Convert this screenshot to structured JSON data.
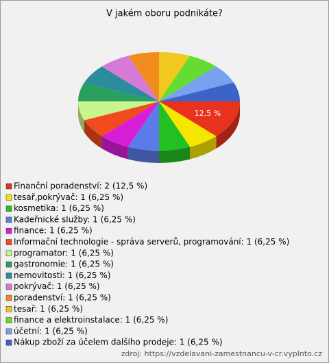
{
  "chart_data": {
    "type": "pie",
    "title": "V jakém oboru podnikáte?",
    "categories": [
      "Finanční poradenství: 2 (12,5 %)",
      "tesař,pokrývač: 1 (6,25 %)",
      "kosmetika: 1 (6,25 %)",
      "Kadeřnické služby: 1 (6,25 %)",
      "finance: 1 (6,25 %)",
      "Informační technologie - správa serverů, programování: 1 (6,25 %)",
      "programator: 1 (6,25 %)",
      "gastronomie: 1 (6,25 %)",
      "nemovitosti: 1 (6,25 %)",
      "pokrývač: 1 (6,25 %)",
      "poradenství: 1 (6,25 %)",
      "tesař: 1 (6,25 %)",
      "finance a elektroinstalace: 1 (6,25 %)",
      "účetní: 1 (6,25 %)",
      "Nákup zboží za účelem dalšího prodeje: 1 (6,25 %)"
    ],
    "values": [
      12.5,
      6.25,
      6.25,
      6.25,
      6.25,
      6.25,
      6.25,
      6.25,
      6.25,
      6.25,
      6.25,
      6.25,
      6.25,
      6.25,
      6.25
    ],
    "value_labels": [
      "12,5 %",
      null,
      null,
      null,
      null,
      null,
      null,
      null,
      null,
      null,
      null,
      null,
      null,
      null,
      null
    ],
    "colors": [
      "#e8321e",
      "#f5e600",
      "#22c022",
      "#5b7be8",
      "#d71ed7",
      "#f04a1e",
      "#c8f58c",
      "#2aa060",
      "#2a8c9c",
      "#d77ad7",
      "#f08c1e",
      "#f0c81e",
      "#64dc32",
      "#7aa0f0",
      "#3c64c8"
    ],
    "source": "zdroj: https://vzdelavani-zamestnancu-v-cr.vyplnto.cz"
  }
}
